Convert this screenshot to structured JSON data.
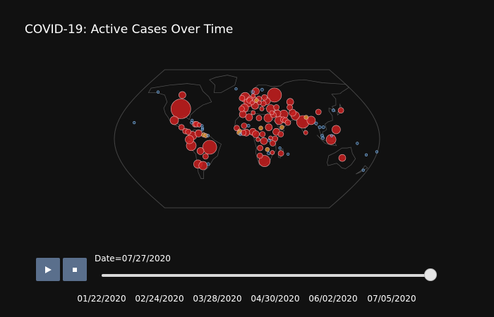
{
  "title": "COVID-19: Active Cases Over Time",
  "controls": {
    "play_icon": "play-icon",
    "stop_icon": "stop-icon",
    "button_color": "#5a6f8c"
  },
  "slider": {
    "current_label": "Date=07/27/2020",
    "ticks": [
      "01/22/2020",
      "02/24/2020",
      "03/28/2020",
      "04/30/2020",
      "06/02/2020",
      "07/05/2020"
    ],
    "range": [
      "01/22/2020",
      "07/27/2020"
    ],
    "progress": 1.0
  },
  "colors": {
    "background": "#111111",
    "high": "#c81e1e",
    "mid": "#d08a2a",
    "low": "#4a8fd8",
    "coastline": "#555555"
  },
  "map_data": {
    "type": "scatter_geo",
    "projection": "natural earth",
    "markers": [
      {
        "lon": -98,
        "lat": 39,
        "size": 14,
        "level": "high"
      },
      {
        "lon": -106,
        "lat": 57,
        "size": 5,
        "level": "high"
      },
      {
        "lon": -102,
        "lat": 24,
        "size": 6,
        "level": "high"
      },
      {
        "lon": -90,
        "lat": 15,
        "size": 4,
        "level": "high"
      },
      {
        "lon": -84,
        "lat": 10,
        "size": 4,
        "level": "high"
      },
      {
        "lon": -80,
        "lat": 9,
        "size": 4,
        "level": "high"
      },
      {
        "lon": -74,
        "lat": 4,
        "size": 6,
        "level": "high"
      },
      {
        "lon": -66,
        "lat": 7,
        "size": 5,
        "level": "high"
      },
      {
        "lon": -78,
        "lat": -1,
        "size": 6,
        "level": "high"
      },
      {
        "lon": -76,
        "lat": -9,
        "size": 7,
        "level": "high"
      },
      {
        "lon": -64,
        "lat": -16,
        "size": 5,
        "level": "high"
      },
      {
        "lon": -51,
        "lat": -11,
        "size": 10,
        "level": "high"
      },
      {
        "lon": -71,
        "lat": -33,
        "size": 6,
        "level": "high"
      },
      {
        "lon": -64,
        "lat": -35,
        "size": 6,
        "level": "high"
      },
      {
        "lon": -58,
        "lat": -23,
        "size": 4,
        "level": "high"
      },
      {
        "lon": -56,
        "lat": -33,
        "size": 3,
        "level": "low"
      },
      {
        "lon": -72,
        "lat": 19,
        "size": 4,
        "level": "high"
      },
      {
        "lon": -70,
        "lat": 19,
        "size": 4,
        "level": "high"
      },
      {
        "lon": -77,
        "lat": 21,
        "size": 3,
        "level": "low"
      },
      {
        "lon": -66,
        "lat": 18,
        "size": 3,
        "level": "high"
      },
      {
        "lon": -59,
        "lat": 5,
        "size": 3,
        "level": "mid"
      },
      {
        "lon": -56,
        "lat": 4,
        "size": 3,
        "level": "mid"
      },
      {
        "lon": -53,
        "lat": 4,
        "size": 3,
        "level": "low"
      },
      {
        "lon": -61,
        "lat": 14,
        "size": 2,
        "level": "low"
      },
      {
        "lon": -61,
        "lat": 12,
        "size": 2,
        "level": "low"
      },
      {
        "lon": -77,
        "lat": 24,
        "size": 2,
        "level": "low"
      },
      {
        "lon": -62,
        "lat": 17,
        "size": 2,
        "level": "low"
      },
      {
        "lon": -19,
        "lat": 65,
        "size": 2,
        "level": "low"
      },
      {
        "lon": -3,
        "lat": 54,
        "size": 7,
        "level": "high"
      },
      {
        "lon": -8,
        "lat": 53,
        "size": 4,
        "level": "high"
      },
      {
        "lon": 2,
        "lat": 47,
        "size": 6,
        "level": "high"
      },
      {
        "lon": -4,
        "lat": 40,
        "size": 6,
        "level": "high"
      },
      {
        "lon": -8,
        "lat": 39,
        "size": 4,
        "level": "high"
      },
      {
        "lon": 12,
        "lat": 43,
        "size": 5,
        "level": "high"
      },
      {
        "lon": 10,
        "lat": 51,
        "size": 5,
        "level": "high"
      },
      {
        "lon": 5,
        "lat": 52,
        "size": 4,
        "level": "high"
      },
      {
        "lon": 4,
        "lat": 50,
        "size": 4,
        "level": "high"
      },
      {
        "lon": 8,
        "lat": 47,
        "size": 3,
        "level": "high"
      },
      {
        "lon": 15,
        "lat": 62,
        "size": 5,
        "level": "high"
      },
      {
        "lon": 10,
        "lat": 61,
        "size": 3,
        "level": "low"
      },
      {
        "lon": 26,
        "lat": 64,
        "size": 3,
        "level": "low"
      },
      {
        "lon": 10,
        "lat": 56,
        "size": 3,
        "level": "high"
      },
      {
        "lon": 19,
        "lat": 52,
        "size": 4,
        "level": "high"
      },
      {
        "lon": 15,
        "lat": 50,
        "size": 3,
        "level": "mid"
      },
      {
        "lon": 19,
        "lat": 47,
        "size": 3,
        "level": "high"
      },
      {
        "lon": 25,
        "lat": 46,
        "size": 4,
        "level": "high"
      },
      {
        "lon": 22,
        "lat": 39,
        "size": 3,
        "level": "high"
      },
      {
        "lon": 28,
        "lat": 54,
        "size": 4,
        "level": "high"
      },
      {
        "lon": 31,
        "lat": 49,
        "size": 5,
        "level": "high"
      },
      {
        "lon": 45,
        "lat": 57,
        "size": 10,
        "level": "high"
      },
      {
        "lon": 35,
        "lat": 39,
        "size": 6,
        "level": "high"
      },
      {
        "lon": 44,
        "lat": 41,
        "size": 4,
        "level": "high"
      },
      {
        "lon": 67,
        "lat": 48,
        "size": 5,
        "level": "high"
      },
      {
        "lon": 64,
        "lat": 41,
        "size": 4,
        "level": "high"
      },
      {
        "lon": 53,
        "lat": 32,
        "size": 6,
        "level": "high"
      },
      {
        "lon": 44,
        "lat": 33,
        "size": 5,
        "level": "high"
      },
      {
        "lon": 45,
        "lat": 24,
        "size": 6,
        "level": "high"
      },
      {
        "lon": 38,
        "lat": 31,
        "size": 4,
        "level": "high"
      },
      {
        "lon": 36,
        "lat": 34,
        "size": 3,
        "level": "high"
      },
      {
        "lon": 51,
        "lat": 25,
        "size": 4,
        "level": "high"
      },
      {
        "lon": 54,
        "lat": 24,
        "size": 4,
        "level": "high"
      },
      {
        "lon": 57,
        "lat": 21,
        "size": 4,
        "level": "high"
      },
      {
        "lon": 48,
        "lat": 15,
        "size": 3,
        "level": "mid"
      },
      {
        "lon": 30,
        "lat": 27,
        "size": 6,
        "level": "high"
      },
      {
        "lon": 3,
        "lat": 28,
        "size": 5,
        "level": "high"
      },
      {
        "lon": 17,
        "lat": 27,
        "size": 4,
        "level": "high"
      },
      {
        "lon": -6,
        "lat": 32,
        "size": 5,
        "level": "high"
      },
      {
        "lon": 9,
        "lat": 34,
        "size": 3,
        "level": "high"
      },
      {
        "lon": 30,
        "lat": 15,
        "size": 5,
        "level": "high"
      },
      {
        "lon": 40,
        "lat": 9,
        "size": 5,
        "level": "high"
      },
      {
        "lon": 46,
        "lat": 6,
        "size": 4,
        "level": "high"
      },
      {
        "lon": 8,
        "lat": 9,
        "size": 5,
        "level": "high"
      },
      {
        "lon": -1,
        "lat": 8,
        "size": 5,
        "level": "high"
      },
      {
        "lon": -5,
        "lat": 8,
        "size": 4,
        "level": "high"
      },
      {
        "lon": -14,
        "lat": 14,
        "size": 4,
        "level": "high"
      },
      {
        "lon": -10,
        "lat": 10,
        "size": 3,
        "level": "mid"
      },
      {
        "lon": -11,
        "lat": 8,
        "size": 3,
        "level": "mid"
      },
      {
        "lon": -9,
        "lat": 6,
        "size": 3,
        "level": "low"
      },
      {
        "lon": -4,
        "lat": 17,
        "size": 4,
        "level": "high"
      },
      {
        "lon": 2,
        "lat": 17,
        "size": 3,
        "level": "low"
      },
      {
        "lon": 12,
        "lat": 6,
        "size": 5,
        "level": "high"
      },
      {
        "lon": 19,
        "lat": 14,
        "size": 3,
        "level": "mid"
      },
      {
        "lon": 21,
        "lat": 6,
        "size": 4,
        "level": "high"
      },
      {
        "lon": 23,
        "lat": -3,
        "size": 5,
        "level": "high"
      },
      {
        "lon": 15,
        "lat": -1,
        "size": 3,
        "level": "high"
      },
      {
        "lon": 38,
        "lat": 0,
        "size": 4,
        "level": "high"
      },
      {
        "lon": 32,
        "lat": 1,
        "size": 3,
        "level": "high"
      },
      {
        "lon": 35,
        "lat": -6,
        "size": 4,
        "level": "high"
      },
      {
        "lon": 30,
        "lat": -2,
        "size": 3,
        "level": "low"
      },
      {
        "lon": 18,
        "lat": -12,
        "size": 4,
        "level": "high"
      },
      {
        "lon": 28,
        "lat": -14,
        "size": 3,
        "level": "mid"
      },
      {
        "lon": 35,
        "lat": -18,
        "size": 3,
        "level": "high"
      },
      {
        "lon": 30,
        "lat": -19,
        "size": 3,
        "level": "low"
      },
      {
        "lon": 18,
        "lat": -22,
        "size": 4,
        "level": "high"
      },
      {
        "lon": 25,
        "lat": -29,
        "size": 8,
        "level": "high"
      },
      {
        "lon": 47,
        "lat": -19,
        "size": 4,
        "level": "high"
      },
      {
        "lon": 78,
        "lat": 22,
        "size": 9,
        "level": "high"
      },
      {
        "lon": 69,
        "lat": 30,
        "size": 6,
        "level": "high"
      },
      {
        "lon": 66,
        "lat": 34,
        "size": 5,
        "level": "high"
      },
      {
        "lon": 90,
        "lat": 24,
        "size": 6,
        "level": "high"
      },
      {
        "lon": 84,
        "lat": 28,
        "size": 3,
        "level": "mid"
      },
      {
        "lon": 80,
        "lat": 8,
        "size": 3,
        "level": "high"
      },
      {
        "lon": 104,
        "lat": 35,
        "size": 4,
        "level": "high"
      },
      {
        "lon": 127,
        "lat": 37,
        "size": 3,
        "level": "low"
      },
      {
        "lon": 138,
        "lat": 37,
        "size": 4,
        "level": "high"
      },
      {
        "lon": 105,
        "lat": 15,
        "size": 3,
        "level": "low"
      },
      {
        "lon": 102,
        "lat": 4,
        "size": 3,
        "level": "low"
      },
      {
        "lon": 103,
        "lat": 1,
        "size": 3,
        "level": "low"
      },
      {
        "lon": 96,
        "lat": 20,
        "size": 3,
        "level": "low"
      },
      {
        "lon": 100,
        "lat": 15,
        "size": 3,
        "level": "low"
      },
      {
        "lon": 122,
        "lat": 12,
        "size": 6,
        "level": "high"
      },
      {
        "lon": 114,
        "lat": -1,
        "size": 7,
        "level": "high"
      },
      {
        "lon": 134,
        "lat": -25,
        "size": 5,
        "level": "high"
      },
      {
        "lon": 174,
        "lat": -41,
        "size": 2,
        "level": "low"
      },
      {
        "lon": 150,
        "lat": -6,
        "size": 2,
        "level": "low"
      },
      {
        "lon": 166,
        "lat": -21,
        "size": 2,
        "level": "low"
      },
      {
        "lon": 179,
        "lat": -17,
        "size": 2,
        "level": "low"
      },
      {
        "lon": 115,
        "lat": 4,
        "size": 2,
        "level": "low"
      },
      {
        "lon": 45,
        "lat": -12,
        "size": 2,
        "level": "low"
      },
      {
        "lon": 57,
        "lat": -20,
        "size": 2,
        "level": "low"
      },
      {
        "lon": -150,
        "lat": 61,
        "size": 2,
        "level": "low"
      },
      {
        "lon": -157,
        "lat": 21,
        "size": 2,
        "level": "low"
      }
    ]
  }
}
